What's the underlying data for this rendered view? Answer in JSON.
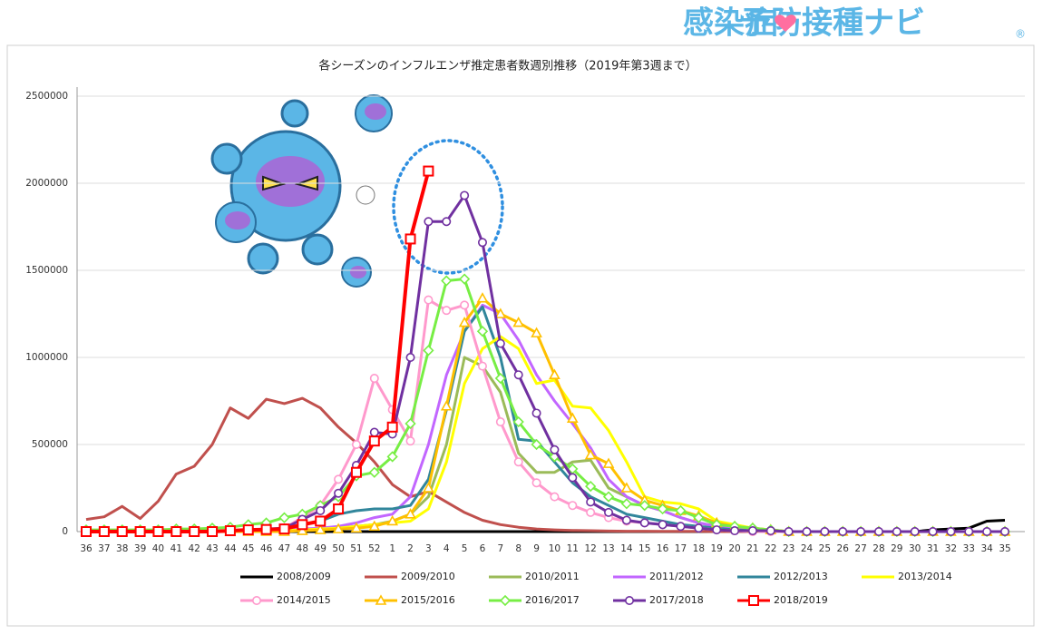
{
  "logo": [
    "感染症",
    "予防接種ナビ",
    "®"
  ],
  "chart_data": {
    "type": "line",
    "title": "各シーズンのインフルエンザ推定患者数週別推移（2019年第3週まで）",
    "categories": [
      "36",
      "37",
      "38",
      "39",
      "40",
      "41",
      "42",
      "43",
      "44",
      "45",
      "46",
      "47",
      "48",
      "49",
      "50",
      "51",
      "52",
      "1",
      "2",
      "3",
      "4",
      "5",
      "6",
      "7",
      "8",
      "9",
      "10",
      "11",
      "12",
      "13",
      "14",
      "15",
      "16",
      "17",
      "18",
      "19",
      "20",
      "21",
      "22",
      "23",
      "24",
      "25",
      "26",
      "27",
      "28",
      "29",
      "30",
      "31",
      "32",
      "33",
      "34",
      "35"
    ],
    "ylim": [
      0,
      2500000
    ],
    "yticks": [
      0,
      500000,
      1000000,
      1500000,
      2000000,
      2500000
    ],
    "grid": true,
    "series": [
      {
        "name": "2008/2009",
        "color": "#000000",
        "marker": "none",
        "values": [
          0,
          0,
          0,
          0,
          0,
          0,
          0,
          0,
          0,
          0,
          0,
          0,
          0,
          0,
          0,
          0,
          0,
          0,
          0,
          0,
          0,
          0,
          0,
          0,
          0,
          0,
          0,
          0,
          0,
          0,
          0,
          0,
          0,
          0,
          0,
          0,
          0,
          0,
          0,
          0,
          0,
          0,
          0,
          0,
          0,
          0,
          0,
          10000,
          15000,
          20000,
          60000,
          65000
        ]
      },
      {
        "name": "2009/2010",
        "color": "#c0504d",
        "marker": "none",
        "values": [
          70000,
          85000,
          145000,
          75000,
          175000,
          330000,
          375000,
          500000,
          710000,
          650000,
          760000,
          735000,
          765000,
          710000,
          600000,
          510000,
          400000,
          270000,
          200000,
          230000,
          170000,
          110000,
          65000,
          40000,
          25000,
          15000,
          10000,
          7000,
          5000,
          3000,
          2000,
          2000,
          1000,
          1000,
          1000,
          0,
          0,
          0,
          0,
          0,
          0,
          0,
          0,
          0,
          0,
          0,
          0,
          0,
          0,
          0,
          0,
          0
        ]
      },
      {
        "name": "2010/2011",
        "color": "#9bbb59",
        "marker": "none",
        "values": [
          0,
          0,
          0,
          0,
          0,
          0,
          0,
          0,
          0,
          0,
          0,
          5000,
          10000,
          15000,
          20000,
          30000,
          40000,
          60000,
          100000,
          200000,
          500000,
          1000000,
          950000,
          800000,
          450000,
          340000,
          340000,
          400000,
          410000,
          250000,
          200000,
          150000,
          120000,
          80000,
          50000,
          30000,
          20000,
          10000,
          5000,
          0,
          0,
          0,
          0,
          0,
          0,
          0,
          0,
          0,
          0,
          0,
          0,
          0
        ]
      },
      {
        "name": "2011/2012",
        "color": "#c266ff",
        "marker": "none",
        "values": [
          0,
          0,
          0,
          0,
          0,
          0,
          0,
          0,
          0,
          0,
          5000,
          10000,
          15000,
          20000,
          30000,
          50000,
          80000,
          100000,
          200000,
          500000,
          900000,
          1150000,
          1300000,
          1250000,
          1100000,
          900000,
          750000,
          620000,
          480000,
          300000,
          200000,
          150000,
          120000,
          80000,
          50000,
          30000,
          20000,
          10000,
          5000,
          0,
          0,
          0,
          0,
          0,
          0,
          0,
          0,
          0,
          0,
          0,
          0,
          0
        ]
      },
      {
        "name": "2012/2013",
        "color": "#31869b",
        "marker": "none",
        "values": [
          0,
          0,
          0,
          0,
          0,
          0,
          0,
          0,
          0,
          5000,
          10000,
          20000,
          40000,
          60000,
          100000,
          120000,
          130000,
          130000,
          150000,
          300000,
          700000,
          1150000,
          1290000,
          1000000,
          530000,
          520000,
          400000,
          280000,
          200000,
          150000,
          100000,
          80000,
          60000,
          40000,
          30000,
          20000,
          10000,
          5000,
          0,
          0,
          0,
          0,
          0,
          0,
          0,
          0,
          0,
          0,
          0,
          0,
          0,
          0
        ]
      },
      {
        "name": "2013/2014",
        "color": "#ffff00",
        "marker": "none",
        "values": [
          0,
          0,
          0,
          0,
          0,
          0,
          0,
          0,
          0,
          0,
          0,
          5000,
          10000,
          15000,
          20000,
          30000,
          40000,
          50000,
          60000,
          130000,
          400000,
          850000,
          1050000,
          1120000,
          1050000,
          850000,
          870000,
          720000,
          710000,
          580000,
          400000,
          200000,
          170000,
          160000,
          130000,
          60000,
          40000,
          20000,
          10000,
          0,
          0,
          0,
          0,
          0,
          0,
          0,
          0,
          0,
          0,
          0,
          0,
          0
        ]
      },
      {
        "name": "2014/2015",
        "color": "#ff99cc",
        "marker": "circle",
        "values": [
          0,
          0,
          0,
          0,
          0,
          0,
          0,
          0,
          0,
          5000,
          10000,
          20000,
          80000,
          150000,
          300000,
          500000,
          880000,
          700000,
          520000,
          1330000,
          1270000,
          1300000,
          950000,
          630000,
          400000,
          280000,
          200000,
          150000,
          110000,
          80000,
          60000,
          50000,
          40000,
          30000,
          20000,
          10000,
          5000,
          0,
          0,
          0,
          0,
          0,
          0,
          0,
          0,
          0,
          0,
          0,
          0,
          0,
          0,
          0
        ]
      },
      {
        "name": "2015/2016",
        "color": "#ffc000",
        "marker": "triangle",
        "values": [
          0,
          0,
          0,
          0,
          0,
          0,
          0,
          0,
          0,
          0,
          0,
          0,
          5000,
          10000,
          15000,
          20000,
          30000,
          60000,
          100000,
          250000,
          720000,
          1200000,
          1340000,
          1250000,
          1200000,
          1140000,
          900000,
          650000,
          440000,
          390000,
          250000,
          180000,
          150000,
          120000,
          90000,
          50000,
          30000,
          20000,
          10000,
          0,
          0,
          0,
          0,
          0,
          0,
          0,
          0,
          0,
          0,
          0,
          0,
          0
        ]
      },
      {
        "name": "2016/2017",
        "color": "#77ee44",
        "marker": "diamond",
        "values": [
          10000,
          10000,
          10000,
          10000,
          10000,
          15000,
          15000,
          20000,
          25000,
          40000,
          50000,
          80000,
          100000,
          150000,
          200000,
          320000,
          340000,
          430000,
          620000,
          1040000,
          1440000,
          1450000,
          1150000,
          880000,
          630000,
          500000,
          430000,
          360000,
          260000,
          200000,
          160000,
          150000,
          130000,
          120000,
          80000,
          40000,
          30000,
          20000,
          10000,
          0,
          0,
          0,
          0,
          0,
          0,
          0,
          0,
          0,
          0,
          0,
          0,
          0
        ]
      },
      {
        "name": "2017/2018",
        "color": "#7030a0",
        "marker": "circle",
        "values": [
          0,
          0,
          0,
          0,
          0,
          0,
          0,
          0,
          5000,
          10000,
          15000,
          20000,
          70000,
          120000,
          220000,
          380000,
          570000,
          560000,
          1000000,
          1780000,
          1780000,
          1930000,
          1660000,
          1080000,
          900000,
          680000,
          470000,
          310000,
          170000,
          110000,
          65000,
          50000,
          40000,
          30000,
          20000,
          10000,
          5000,
          5000,
          5000,
          0,
          0,
          0,
          0,
          0,
          0,
          0,
          0,
          0,
          0,
          0,
          0,
          0
        ]
      },
      {
        "name": "2018/2019",
        "color": "#ff0000",
        "marker": "square",
        "values": [
          0,
          0,
          0,
          0,
          0,
          0,
          0,
          0,
          5000,
          10000,
          12000,
          15000,
          40000,
          60000,
          130000,
          340000,
          520000,
          600000,
          1680000,
          2070000,
          null,
          null,
          null,
          null,
          null,
          null,
          null,
          null,
          null,
          null,
          null,
          null,
          null,
          null,
          null,
          null,
          null,
          null,
          null,
          null,
          null,
          null,
          null,
          null,
          null,
          null,
          null,
          null,
          null,
          null,
          null,
          null
        ]
      }
    ]
  }
}
